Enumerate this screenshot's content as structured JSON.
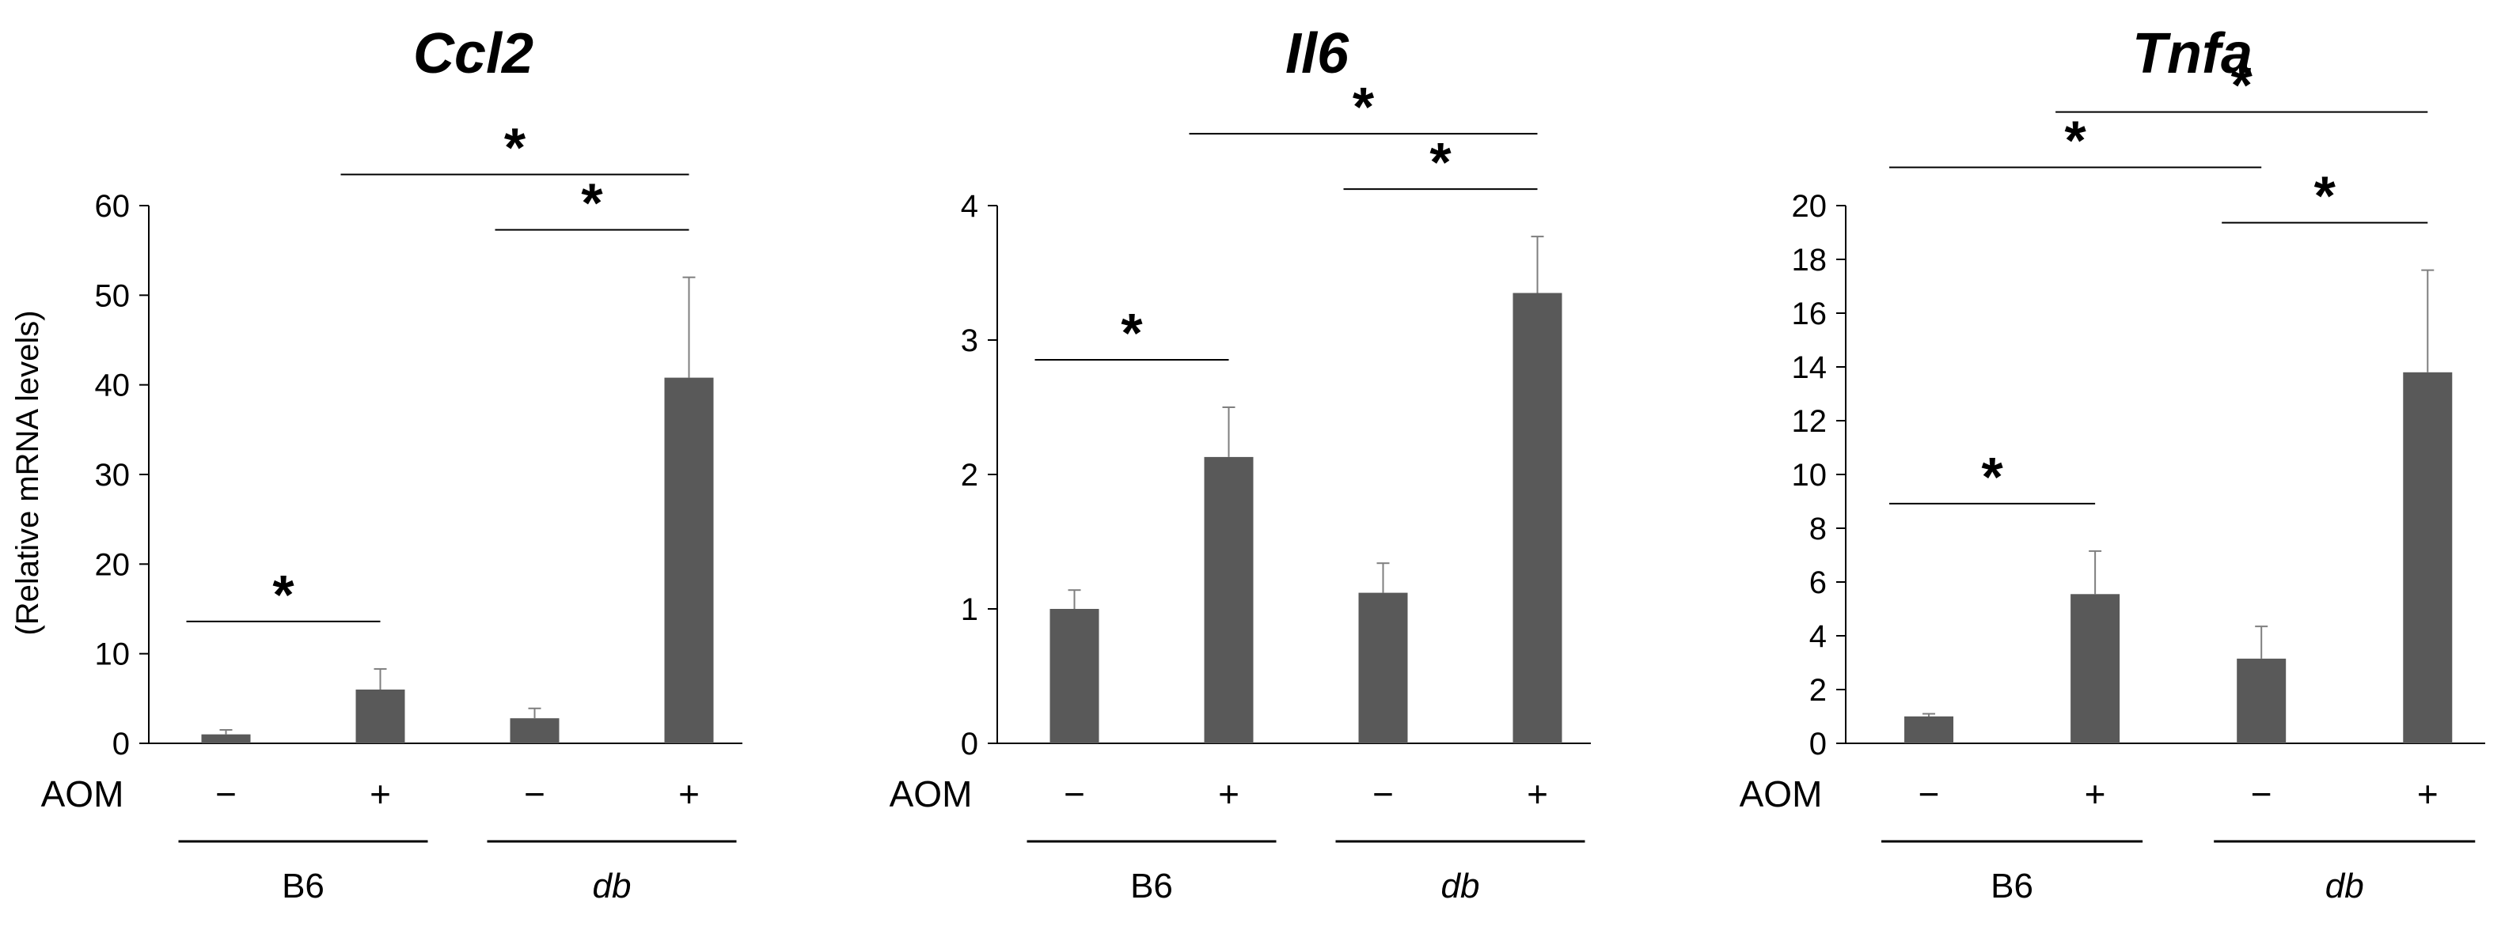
{
  "y_axis_label": "(Relative mRNA levels)",
  "treatment_row_label": "AOM",
  "treatment_values": [
    "−",
    "+",
    "−",
    "+"
  ],
  "groups": [
    {
      "label": "B6",
      "italic": false
    },
    {
      "label": "db",
      "italic": true
    }
  ],
  "significance_marker": "*",
  "colors": {
    "bar": "#595959",
    "axis": "#000000"
  },
  "chart_data": [
    {
      "type": "bar",
      "title": "Ccl2",
      "ylim": [
        0,
        60
      ],
      "yticks": [
        0,
        10,
        20,
        30,
        40,
        50,
        60
      ],
      "values": [
        1.0,
        6.0,
        2.8,
        40.8
      ],
      "errors": [
        0.5,
        2.3,
        1.1,
        11.2
      ],
      "significance": [
        {
          "from": 0,
          "to": 1
        },
        {
          "from": 3,
          "to": 1
        },
        {
          "from": 3,
          "to": 2
        }
      ]
    },
    {
      "type": "bar",
      "title": "Il6",
      "ylim": [
        0,
        4
      ],
      "yticks": [
        0,
        1,
        2,
        3,
        4
      ],
      "values": [
        1.0,
        2.13,
        1.12,
        3.35
      ],
      "errors": [
        0.14,
        0.37,
        0.22,
        0.42
      ],
      "significance": [
        {
          "from": 0,
          "to": 1
        },
        {
          "from": 3,
          "to": 1
        },
        {
          "from": 3,
          "to": 2
        }
      ]
    },
    {
      "type": "bar",
      "title": "Tnfa",
      "ylim": [
        0,
        20
      ],
      "yticks": [
        0,
        2,
        4,
        6,
        8,
        10,
        12,
        14,
        16,
        18,
        20
      ],
      "values": [
        1.0,
        5.55,
        3.15,
        13.8
      ],
      "errors": [
        0.1,
        1.6,
        1.2,
        3.8
      ],
      "significance": [
        {
          "from": 0,
          "to": 1
        },
        {
          "from": 0,
          "to": 2
        },
        {
          "from": 3,
          "to": 1
        },
        {
          "from": 3,
          "to": 2
        }
      ]
    }
  ]
}
